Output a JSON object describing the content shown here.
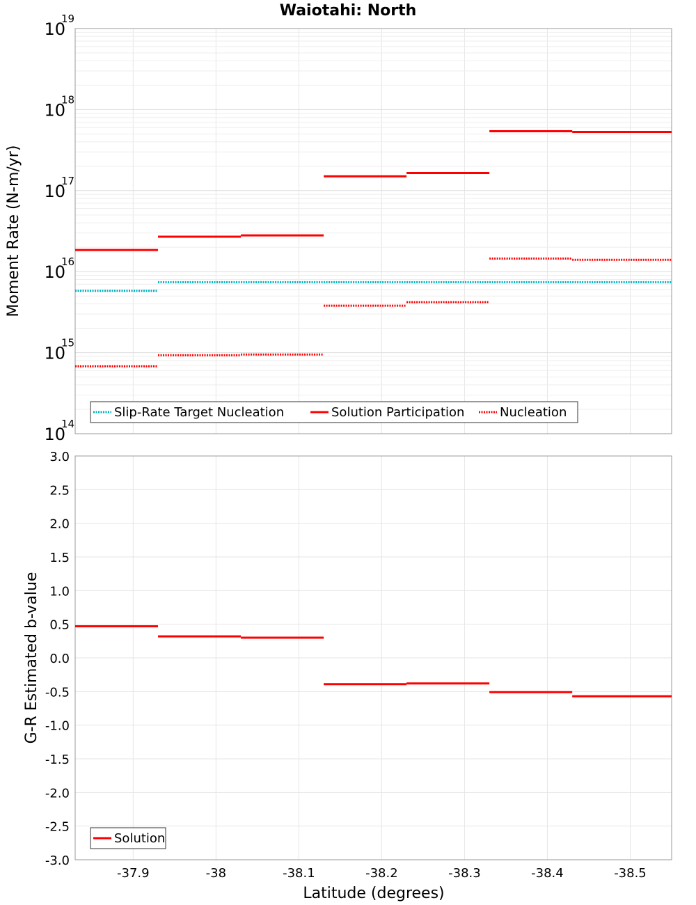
{
  "title": "Waiotahi: North",
  "colors": {
    "solution": "#ff0000",
    "target": "#00b0c0",
    "grid": "#e6e6e6",
    "frame": "#999999"
  },
  "chart_data": [
    {
      "type": "line",
      "panel": "top",
      "ylabel": "Moment Rate (N-m/yr)",
      "yscale": "log",
      "ylim": [
        100000000000000.0,
        1e+19
      ],
      "xlim": [
        -37.83,
        -38.55
      ],
      "y_ticks": [
        {
          "base": "10",
          "exp": "14"
        },
        {
          "base": "10",
          "exp": "15"
        },
        {
          "base": "10",
          "exp": "16"
        },
        {
          "base": "10",
          "exp": "17"
        },
        {
          "base": "10",
          "exp": "18"
        },
        {
          "base": "10",
          "exp": "19"
        }
      ],
      "legend": {
        "placement": "bottom-left",
        "entries": [
          "Slip-Rate Target Nucleation",
          "Solution Participation",
          "Nucleation"
        ]
      },
      "series": [
        {
          "name": "Slip-Rate Target Nucleation",
          "style": "dotted",
          "color": "#00b0c0",
          "segments": [
            {
              "x": [
                -37.83,
                -37.93
              ],
              "y": 5800000000000000.0
            },
            {
              "x": [
                -37.93,
                -38.03
              ],
              "y": 7400000000000000.0
            },
            {
              "x": [
                -38.03,
                -38.13
              ],
              "y": 7400000000000000.0
            },
            {
              "x": [
                -38.13,
                -38.23
              ],
              "y": 7400000000000000.0
            },
            {
              "x": [
                -38.23,
                -38.33
              ],
              "y": 7400000000000000.0
            },
            {
              "x": [
                -38.33,
                -38.43
              ],
              "y": 7400000000000000.0
            },
            {
              "x": [
                -38.43,
                -38.55
              ],
              "y": 7400000000000000.0
            }
          ]
        },
        {
          "name": "Solution Participation",
          "style": "solid",
          "color": "#ff0000",
          "segments": [
            {
              "x": [
                -37.83,
                -37.93
              ],
              "y": 1.85e+16
            },
            {
              "x": [
                -37.93,
                -38.03
              ],
              "y": 2.7e+16
            },
            {
              "x": [
                -38.03,
                -38.13
              ],
              "y": 2.8e+16
            },
            {
              "x": [
                -38.13,
                -38.23
              ],
              "y": 1.5e+17
            },
            {
              "x": [
                -38.23,
                -38.33
              ],
              "y": 1.65e+17
            },
            {
              "x": [
                -38.33,
                -38.43
              ],
              "y": 5.4e+17
            },
            {
              "x": [
                -38.43,
                -38.55
              ],
              "y": 5.3e+17
            }
          ]
        },
        {
          "name": "Nucleation",
          "style": "dotted",
          "color": "#ff0000",
          "segments": [
            {
              "x": [
                -37.83,
                -37.93
              ],
              "y": 680000000000000.0
            },
            {
              "x": [
                -37.93,
                -38.03
              ],
              "y": 930000000000000.0
            },
            {
              "x": [
                -38.03,
                -38.13
              ],
              "y": 950000000000000.0
            },
            {
              "x": [
                -38.13,
                -38.23
              ],
              "y": 3800000000000000.0
            },
            {
              "x": [
                -38.23,
                -38.33
              ],
              "y": 4200000000000000.0
            },
            {
              "x": [
                -38.33,
                -38.43
              ],
              "y": 1.45e+16
            },
            {
              "x": [
                -38.43,
                -38.55
              ],
              "y": 1.4e+16
            }
          ]
        }
      ]
    },
    {
      "type": "line",
      "panel": "bottom",
      "xlabel": "Latitude (degrees)",
      "ylabel": "G-R Estimated b-value",
      "ylim": [
        -3.0,
        3.0
      ],
      "xlim": [
        -37.83,
        -38.55
      ],
      "y_ticks": [
        "-3.0",
        "-2.5",
        "-2.0",
        "-1.5",
        "-1.0",
        "-0.5",
        "0.0",
        "0.5",
        "1.0",
        "1.5",
        "2.0",
        "2.5",
        "3.0"
      ],
      "x_ticks": [
        "-37.9",
        "-38",
        "-38.1",
        "-38.2",
        "-38.3",
        "-38.4",
        "-38.5"
      ],
      "legend": {
        "placement": "bottom-left",
        "entries": [
          "Solution"
        ]
      },
      "series": [
        {
          "name": "Solution",
          "style": "solid",
          "color": "#ff0000",
          "segments": [
            {
              "x": [
                -37.83,
                -37.93
              ],
              "y": 0.47
            },
            {
              "x": [
                -37.93,
                -38.03
              ],
              "y": 0.32
            },
            {
              "x": [
                -38.03,
                -38.13
              ],
              "y": 0.3
            },
            {
              "x": [
                -38.13,
                -38.23
              ],
              "y": -0.39
            },
            {
              "x": [
                -38.23,
                -38.33
              ],
              "y": -0.38
            },
            {
              "x": [
                -38.33,
                -38.43
              ],
              "y": -0.51
            },
            {
              "x": [
                -38.43,
                -38.55
              ],
              "y": -0.57
            }
          ]
        }
      ]
    }
  ]
}
